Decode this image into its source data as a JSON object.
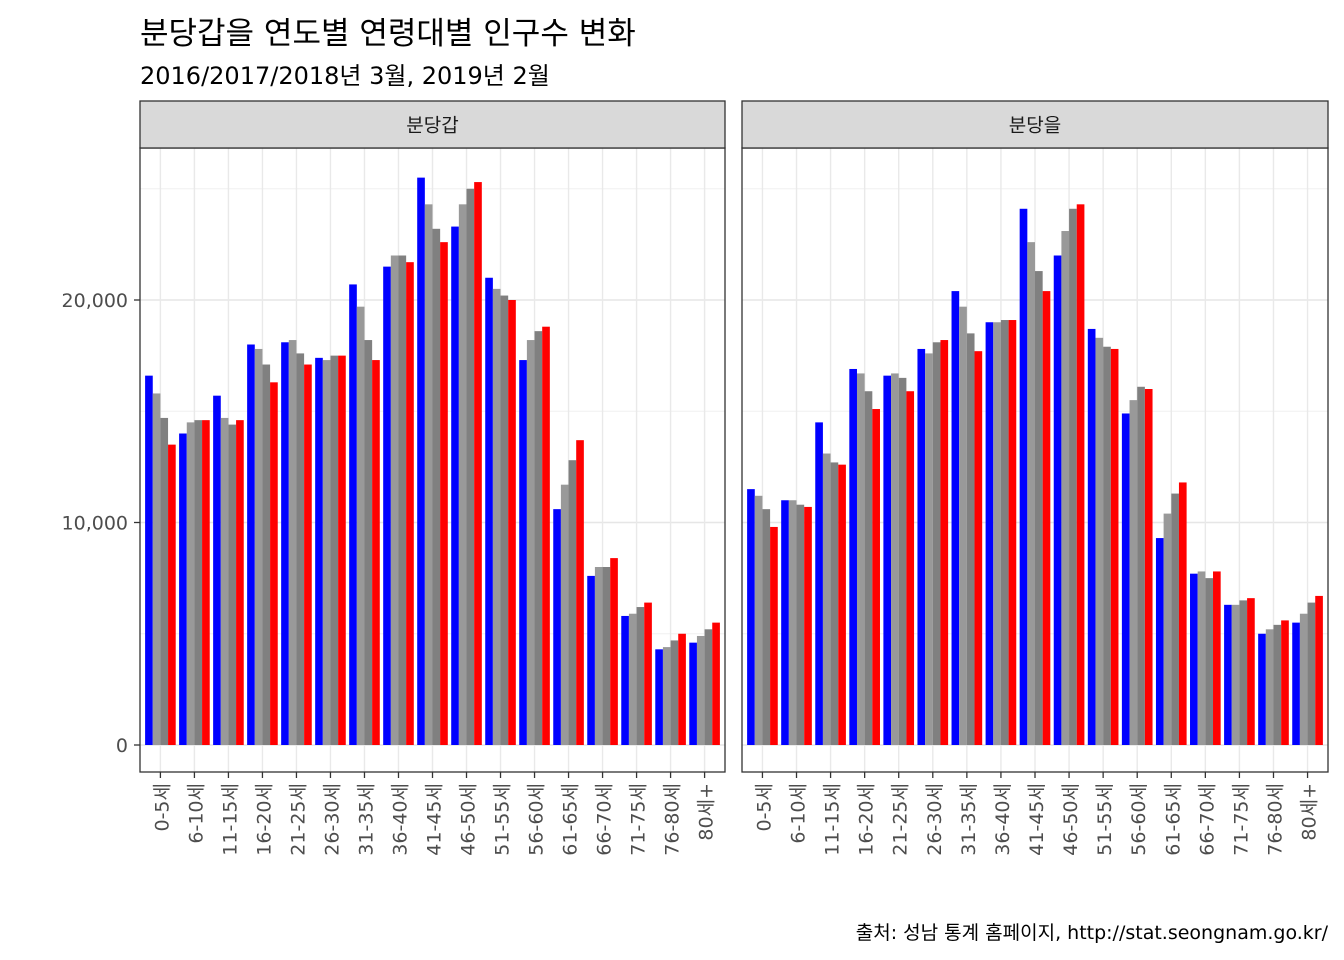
{
  "chart_data": {
    "type": "bar",
    "title": "분당갑을 연도별 연령대별 인구수 변화",
    "subtitle": "2016/2017/2018년 3월, 2019년 2월",
    "caption": "출처: 성남 통계 홈페이지, http://stat.seongnam.go.kr/",
    "xlabel": "",
    "ylabel": "",
    "ylim": [
      0,
      26000
    ],
    "yticks": [
      0,
      10000,
      20000
    ],
    "ytick_labels": [
      "0",
      "10,000",
      "20,000"
    ],
    "grid": true,
    "legend": "none",
    "categories": [
      "0-5세",
      "6-10세",
      "11-15세",
      "16-20세",
      "21-25세",
      "26-30세",
      "31-35세",
      "36-40세",
      "41-45세",
      "46-50세",
      "51-55세",
      "56-60세",
      "61-65세",
      "66-70세",
      "71-75세",
      "76-80세",
      "80세+"
    ],
    "series_colors": [
      "#0000ff",
      "#999999",
      "#808080",
      "#ff0000"
    ],
    "panels": [
      {
        "title": "분당갑",
        "series": [
          {
            "values": [
              16600,
              14000,
              15700,
              18000,
              18100,
              17400,
              20700,
              21500,
              25500,
              23300,
              21000,
              17300,
              10600,
              7600,
              5800,
              4300,
              4600
            ]
          },
          {
            "values": [
              15800,
              14500,
              14700,
              17800,
              18200,
              17300,
              19700,
              22000,
              24300,
              24300,
              20500,
              18200,
              11700,
              8000,
              5900,
              4400,
              4900
            ]
          },
          {
            "values": [
              14700,
              14600,
              14400,
              17100,
              17600,
              17500,
              18200,
              22000,
              23200,
              25000,
              20200,
              18600,
              12800,
              8000,
              6200,
              4700,
              5200
            ]
          },
          {
            "values": [
              13500,
              14600,
              14600,
              16300,
              17100,
              17500,
              17300,
              21700,
              22600,
              25300,
              20000,
              18800,
              13700,
              8400,
              6400,
              5000,
              5500
            ]
          }
        ]
      },
      {
        "title": "분당을",
        "series": [
          {
            "values": [
              11500,
              11000,
              14500,
              16900,
              16600,
              17800,
              20400,
              19000,
              24100,
              22000,
              18700,
              14900,
              9300,
              7700,
              6300,
              5000,
              5500
            ]
          },
          {
            "values": [
              11200,
              11000,
              13100,
              16700,
              16700,
              17600,
              19700,
              19000,
              22600,
              23100,
              18300,
              15500,
              10400,
              7800,
              6300,
              5200,
              5900
            ]
          },
          {
            "values": [
              10600,
              10800,
              12700,
              15900,
              16500,
              18100,
              18500,
              19100,
              21300,
              24100,
              17900,
              16100,
              11300,
              7500,
              6500,
              5400,
              6400
            ]
          },
          {
            "values": [
              9800,
              10700,
              12600,
              15100,
              15900,
              18200,
              17700,
              19100,
              20400,
              24300,
              17800,
              16000,
              11800,
              7800,
              6600,
              5600,
              6700
            ]
          }
        ]
      }
    ]
  }
}
